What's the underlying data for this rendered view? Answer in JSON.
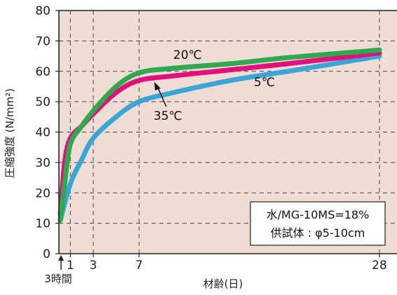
{
  "chart_data": {
    "type": "line",
    "xlabel": "材齢(日)",
    "ylabel": "圧縮強度 (N/mm²)",
    "ylim": [
      0,
      80
    ],
    "xlim": [
      0,
      30
    ],
    "x_ticks": [
      {
        "x": 1,
        "label": "1"
      },
      {
        "x": 3,
        "label": "3"
      },
      {
        "x": 7,
        "label": "7"
      },
      {
        "x": 28,
        "label": "28"
      }
    ],
    "y_ticks": [
      0,
      10,
      20,
      30,
      40,
      50,
      60,
      70,
      80
    ],
    "x_extra_label": "3時間",
    "grid": true,
    "series": [
      {
        "name": "5℃",
        "color": "#3aa6d6",
        "x": [
          0.125,
          1,
          2,
          3,
          5,
          7,
          10,
          15,
          20,
          28
        ],
        "y": [
          11,
          23,
          31,
          38,
          45,
          50,
          53,
          57,
          60,
          65
        ]
      },
      {
        "name": "35℃",
        "color": "#e0117a",
        "x": [
          0.125,
          0.5,
          1,
          2,
          3,
          5,
          7,
          10,
          15,
          20,
          28
        ],
        "y": [
          13,
          30,
          38,
          42,
          46,
          53,
          57,
          58.5,
          60.5,
          62.5,
          66
        ]
      },
      {
        "name": "20℃",
        "color": "#2fa84f",
        "x": [
          0.125,
          0.5,
          1,
          2,
          3,
          5,
          7,
          10,
          15,
          20,
          28
        ],
        "y": [
          11,
          23,
          36,
          42,
          47,
          55,
          59.5,
          61,
          62.5,
          64.5,
          67
        ]
      }
    ],
    "annotations": {
      "label_20": "20℃",
      "label_5": "5℃",
      "label_35": "35℃",
      "note_line1": "水/MG-10MS=18%",
      "note_line2": "供試体 : φ5-10cm"
    },
    "colors": {
      "plot_background": "#eedcd5",
      "grid": "#444444"
    }
  }
}
